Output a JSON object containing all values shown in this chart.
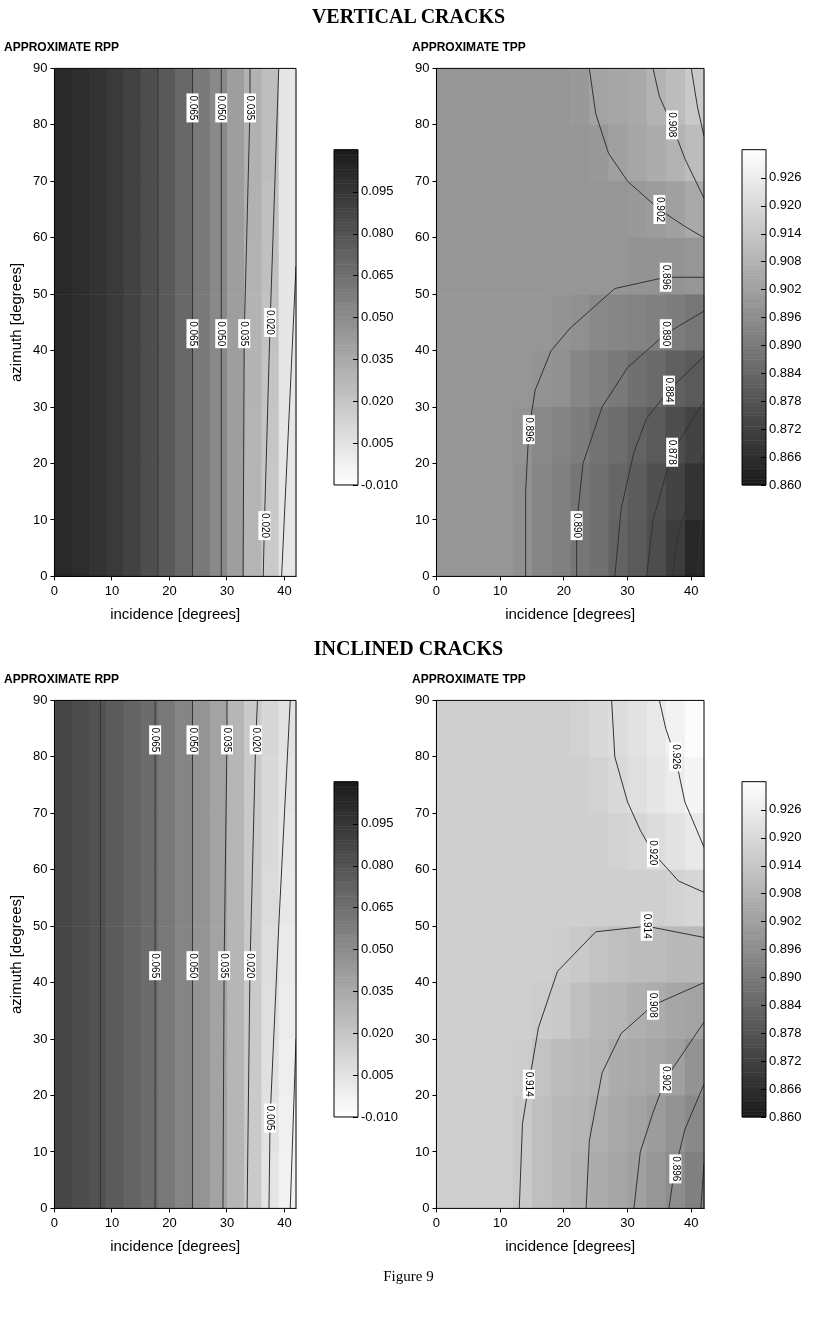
{
  "chart_data": [
    {
      "type": "heatmap",
      "title": "APPROXIMATE RPP",
      "xlabel": "incidence [degrees]",
      "ylabel": "azimuth [degrees]",
      "xlim": [
        0,
        42
      ],
      "ylim": [
        0,
        90
      ],
      "xticks": [
        0,
        10,
        20,
        30,
        40
      ],
      "yticks": [
        0,
        10,
        20,
        30,
        40,
        50,
        60,
        70,
        80,
        90
      ],
      "grid": false,
      "clim": [
        -0.01,
        0.11
      ],
      "colors": [
        "#ffffff",
        "#1a1a1a"
      ],
      "cticks": [
        {
          "value": -0.01,
          "label": "-0.010"
        },
        {
          "value": 0.005,
          "label": "0.005"
        },
        {
          "value": 0.02,
          "label": "0.020"
        },
        {
          "value": 0.035,
          "label": "0.035"
        },
        {
          "value": 0.05,
          "label": "0.050"
        },
        {
          "value": 0.065,
          "label": "0.065"
        },
        {
          "value": 0.08,
          "label": "0.080"
        },
        {
          "value": 0.095,
          "label": "0.095"
        }
      ],
      "cells": [
        [
          0.102,
          0.1,
          0.097,
          0.093,
          0.089,
          0.083,
          0.077,
          0.069,
          0.06,
          0.052,
          0.041,
          0.031,
          0.024,
          0.003
        ],
        [
          0.102,
          0.1,
          0.097,
          0.093,
          0.089,
          0.083,
          0.077,
          0.069,
          0.06,
          0.052,
          0.041,
          0.031,
          0.024,
          0.003
        ],
        [
          0.102,
          0.1,
          0.097,
          0.093,
          0.089,
          0.083,
          0.077,
          0.069,
          0.06,
          0.052,
          0.041,
          0.031,
          0.023,
          0.003
        ],
        [
          0.102,
          0.1,
          0.097,
          0.093,
          0.089,
          0.083,
          0.077,
          0.069,
          0.06,
          0.052,
          0.041,
          0.03,
          0.023,
          0.003
        ],
        [
          0.102,
          0.1,
          0.097,
          0.093,
          0.089,
          0.083,
          0.077,
          0.069,
          0.06,
          0.052,
          0.041,
          0.03,
          0.022,
          0.003
        ],
        [
          0.102,
          0.1,
          0.097,
          0.093,
          0.089,
          0.083,
          0.077,
          0.069,
          0.06,
          0.052,
          0.041,
          0.03,
          0.021,
          0.003
        ],
        [
          0.102,
          0.1,
          0.097,
          0.093,
          0.089,
          0.083,
          0.077,
          0.069,
          0.06,
          0.052,
          0.041,
          0.029,
          0.02,
          0.003
        ],
        [
          0.102,
          0.1,
          0.097,
          0.093,
          0.089,
          0.083,
          0.077,
          0.069,
          0.06,
          0.052,
          0.041,
          0.029,
          0.019,
          0.003
        ],
        [
          0.102,
          0.1,
          0.097,
          0.093,
          0.089,
          0.083,
          0.077,
          0.069,
          0.06,
          0.052,
          0.041,
          0.029,
          0.018,
          0.003
        ]
      ],
      "series": [
        {
          "type": "line",
          "color": "#333333",
          "x": [
            9,
            9
          ],
          "values": [
            0,
            90
          ]
        },
        {
          "type": "line",
          "color": "#333333",
          "x": [
            18,
            18
          ],
          "values": [
            0,
            90
          ]
        },
        {
          "type": "line",
          "color": "#333333",
          "x": [
            24,
            24
          ],
          "values": [
            0,
            90
          ]
        },
        {
          "type": "line",
          "color": "#333333",
          "x": [
            29,
            29
          ],
          "values": [
            0,
            90
          ]
        },
        {
          "type": "line",
          "color": "#333333",
          "x": [
            32.8,
            33,
            34,
            34
          ],
          "values": [
            0,
            43,
            83,
            90
          ]
        },
        {
          "type": "line",
          "color": "#333333",
          "x": [
            36.3,
            36.5,
            37.5,
            39
          ],
          "values": [
            0,
            9,
            45,
            90
          ]
        },
        {
          "type": "line",
          "color": "#333333",
          "x": [
            39.5,
            42
          ],
          "values": [
            0,
            55
          ]
        }
      ],
      "annotations": [
        "VERTICAL CRACKS",
        {
          "text": "0.065",
          "x": 24,
          "y": 83
        },
        {
          "text": "0.050",
          "x": 29,
          "y": 83
        },
        {
          "text": "0.035",
          "x": 34,
          "y": 83
        },
        {
          "text": "0.065",
          "x": 24,
          "y": 43
        },
        {
          "text": "0.050",
          "x": 29,
          "y": 43
        },
        {
          "text": "0.035",
          "x": 33,
          "y": 43
        },
        {
          "text": "0.020",
          "x": 37.5,
          "y": 45
        },
        {
          "text": "0.020",
          "x": 36.5,
          "y": 9
        }
      ]
    },
    {
      "type": "heatmap",
      "title": "APPROXIMATE TPP",
      "xlabel": "incidence [degrees]",
      "xlim": [
        0,
        42
      ],
      "ylim": [
        0,
        90
      ],
      "xticks": [
        0,
        10,
        20,
        30,
        40
      ],
      "yticks": [
        0,
        10,
        20,
        30,
        40,
        50,
        60,
        70,
        80,
        90
      ],
      "grid": false,
      "clim": [
        0.86,
        0.932
      ],
      "colors": [
        "#1a1a1a",
        "#ffffff"
      ],
      "cticks": [
        {
          "value": 0.86,
          "label": "0.860"
        },
        {
          "value": 0.866,
          "label": "0.866"
        },
        {
          "value": 0.872,
          "label": "0.872"
        },
        {
          "value": 0.878,
          "label": "0.878"
        },
        {
          "value": 0.884,
          "label": "0.884"
        },
        {
          "value": 0.89,
          "label": "0.890"
        },
        {
          "value": 0.896,
          "label": "0.896"
        },
        {
          "value": 0.902,
          "label": "0.902"
        },
        {
          "value": 0.908,
          "label": "0.908"
        },
        {
          "value": 0.914,
          "label": "0.914"
        },
        {
          "value": 0.92,
          "label": "0.920"
        },
        {
          "value": 0.926,
          "label": "0.926"
        }
      ],
      "cells": [
        [
          0.899,
          0.899,
          0.899,
          0.899,
          0.899,
          0.899,
          0.899,
          0.9,
          0.903,
          0.904,
          0.905,
          0.908,
          0.911,
          0.915
        ],
        [
          0.899,
          0.899,
          0.899,
          0.899,
          0.899,
          0.899,
          0.899,
          0.899,
          0.9,
          0.902,
          0.904,
          0.906,
          0.908,
          0.911
        ],
        [
          0.899,
          0.899,
          0.899,
          0.899,
          0.899,
          0.899,
          0.899,
          0.899,
          0.899,
          0.899,
          0.9,
          0.901,
          0.902,
          0.905
        ],
        [
          0.899,
          0.899,
          0.899,
          0.899,
          0.899,
          0.899,
          0.899,
          0.899,
          0.899,
          0.899,
          0.898,
          0.898,
          0.898,
          0.899
        ],
        [
          0.899,
          0.899,
          0.899,
          0.899,
          0.899,
          0.899,
          0.898,
          0.897,
          0.895,
          0.894,
          0.893,
          0.892,
          0.891,
          0.889
        ],
        [
          0.899,
          0.899,
          0.899,
          0.899,
          0.899,
          0.898,
          0.897,
          0.894,
          0.892,
          0.89,
          0.887,
          0.885,
          0.882,
          0.88
        ],
        [
          0.899,
          0.899,
          0.899,
          0.899,
          0.898,
          0.895,
          0.893,
          0.891,
          0.888,
          0.886,
          0.883,
          0.88,
          0.876,
          0.873
        ],
        [
          0.899,
          0.899,
          0.899,
          0.899,
          0.897,
          0.894,
          0.892,
          0.889,
          0.887,
          0.884,
          0.881,
          0.877,
          0.873,
          0.868
        ],
        [
          0.899,
          0.899,
          0.899,
          0.899,
          0.897,
          0.894,
          0.892,
          0.889,
          0.887,
          0.883,
          0.88,
          0.876,
          0.871,
          0.864
        ]
      ],
      "series": [
        {
          "type": "line",
          "color": "#333333",
          "x": [
            14,
            14,
            14.5,
            15.5,
            18,
            21,
            28,
            36,
            42
          ],
          "values": [
            0,
            15,
            26,
            33,
            40,
            44,
            51,
            53,
            53
          ]
        },
        {
          "type": "line",
          "color": "#333333",
          "x": [
            22,
            22,
            23,
            26,
            30,
            36,
            42
          ],
          "values": [
            0,
            9,
            20,
            30,
            37,
            43,
            47
          ]
        },
        {
          "type": "line",
          "color": "#333333",
          "x": [
            28,
            29,
            31,
            33,
            36.5,
            42
          ],
          "values": [
            0,
            12,
            22,
            28,
            33,
            39
          ]
        },
        {
          "type": "line",
          "color": "#333333",
          "x": [
            33,
            34,
            36,
            37,
            42
          ],
          "values": [
            0,
            10,
            18,
            22,
            31
          ]
        },
        {
          "type": "line",
          "color": "#333333",
          "x": [
            37,
            38,
            40,
            42
          ],
          "values": [
            0,
            8,
            15,
            22
          ]
        },
        {
          "type": "line",
          "color": "#333333",
          "x": [
            41,
            42
          ],
          "values": [
            0,
            18
          ]
        },
        {
          "type": "line",
          "color": "#333333",
          "x": [
            24,
            25,
            27,
            30,
            35,
            39,
            42
          ],
          "values": [
            90,
            82,
            75,
            70,
            65,
            62,
            60
          ]
        },
        {
          "type": "line",
          "color": "#333333",
          "x": [
            34,
            35,
            37,
            39,
            42
          ],
          "values": [
            90,
            85,
            80,
            74,
            67
          ]
        },
        {
          "type": "line",
          "color": "#333333",
          "x": [
            40,
            41,
            42
          ],
          "values": [
            90,
            83,
            78
          ]
        }
      ],
      "annotations": [
        {
          "text": "0.908",
          "x": 37,
          "y": 80
        },
        {
          "text": "0.902",
          "x": 35,
          "y": 65
        },
        {
          "text": "0.896",
          "x": 36,
          "y": 53
        },
        {
          "text": "0.890",
          "x": 36,
          "y": 43
        },
        {
          "text": "0.884",
          "x": 36.5,
          "y": 33
        },
        {
          "text": "0.878",
          "x": 37,
          "y": 22
        },
        {
          "text": "0.896",
          "x": 14.5,
          "y": 26
        },
        {
          "text": "0.890",
          "x": 22,
          "y": 9
        }
      ]
    },
    {
      "type": "heatmap",
      "title": "APPROXIMATE RPP",
      "xlabel": "incidence [degrees]",
      "ylabel": "azimuth [degrees]",
      "xlim": [
        0,
        42
      ],
      "ylim": [
        0,
        90
      ],
      "xticks": [
        0,
        10,
        20,
        30,
        40
      ],
      "yticks": [
        0,
        10,
        20,
        30,
        40,
        50,
        60,
        70,
        80,
        90
      ],
      "grid": false,
      "clim": [
        -0.01,
        0.11
      ],
      "colors": [
        "#ffffff",
        "#1a1a1a"
      ],
      "cticks": [
        {
          "value": -0.01,
          "label": "-0.010"
        },
        {
          "value": 0.005,
          "label": "0.005"
        },
        {
          "value": 0.02,
          "label": "0.020"
        },
        {
          "value": 0.035,
          "label": "0.035"
        },
        {
          "value": 0.05,
          "label": "0.050"
        },
        {
          "value": 0.065,
          "label": "0.065"
        },
        {
          "value": 0.08,
          "label": "0.080"
        },
        {
          "value": 0.095,
          "label": "0.095"
        }
      ],
      "cells": [
        [
          0.087,
          0.084,
          0.081,
          0.076,
          0.071,
          0.067,
          0.061,
          0.054,
          0.046,
          0.038,
          0.028,
          0.018,
          0.011,
          0.005
        ],
        [
          0.087,
          0.084,
          0.081,
          0.076,
          0.071,
          0.067,
          0.061,
          0.054,
          0.046,
          0.038,
          0.028,
          0.018,
          0.01,
          0.004
        ],
        [
          0.087,
          0.084,
          0.081,
          0.076,
          0.071,
          0.067,
          0.061,
          0.054,
          0.046,
          0.038,
          0.028,
          0.018,
          0.01,
          0.003
        ],
        [
          0.087,
          0.084,
          0.081,
          0.076,
          0.071,
          0.067,
          0.061,
          0.054,
          0.046,
          0.038,
          0.028,
          0.018,
          0.009,
          0.002
        ],
        [
          0.087,
          0.084,
          0.081,
          0.076,
          0.071,
          0.067,
          0.061,
          0.054,
          0.046,
          0.038,
          0.028,
          0.018,
          0.008,
          0.001
        ],
        [
          0.087,
          0.084,
          0.081,
          0.076,
          0.071,
          0.067,
          0.061,
          0.054,
          0.046,
          0.038,
          0.028,
          0.018,
          0.007,
          0.0
        ],
        [
          0.087,
          0.084,
          0.081,
          0.076,
          0.071,
          0.067,
          0.061,
          0.054,
          0.046,
          0.038,
          0.028,
          0.018,
          0.006,
          -0.001
        ],
        [
          0.087,
          0.084,
          0.081,
          0.076,
          0.071,
          0.067,
          0.061,
          0.054,
          0.046,
          0.038,
          0.028,
          0.018,
          0.005,
          -0.002
        ],
        [
          0.087,
          0.084,
          0.081,
          0.076,
          0.071,
          0.067,
          0.061,
          0.054,
          0.046,
          0.038,
          0.028,
          0.018,
          0.004,
          -0.003
        ]
      ],
      "series": [
        {
          "type": "line",
          "color": "#333333",
          "x": [
            8,
            8
          ],
          "values": [
            0,
            90
          ]
        },
        {
          "type": "line",
          "color": "#333333",
          "x": [
            17.5,
            17.5
          ],
          "values": [
            0,
            90
          ]
        },
        {
          "type": "line",
          "color": "#333333",
          "x": [
            24,
            24
          ],
          "values": [
            0,
            90
          ]
        },
        {
          "type": "line",
          "color": "#333333",
          "x": [
            29.3,
            29.5,
            30,
            30
          ],
          "values": [
            0,
            43,
            83,
            90
          ]
        },
        {
          "type": "line",
          "color": "#333333",
          "x": [
            33.5,
            34,
            35,
            35.3
          ],
          "values": [
            0,
            43,
            83,
            90
          ]
        },
        {
          "type": "line",
          "color": "#333333",
          "x": [
            37.3,
            37.5,
            39,
            41
          ],
          "values": [
            0,
            16,
            50,
            90
          ]
        },
        {
          "type": "line",
          "color": "#333333",
          "x": [
            41,
            42
          ],
          "values": [
            0,
            30
          ]
        }
      ],
      "annotations": [
        "INCLINED CRACKS",
        {
          "text": "0.065",
          "x": 17.5,
          "y": 83
        },
        {
          "text": "0.050",
          "x": 24,
          "y": 83
        },
        {
          "text": "0.035",
          "x": 30,
          "y": 83
        },
        {
          "text": "0.020",
          "x": 35,
          "y": 83
        },
        {
          "text": "0.065",
          "x": 17.5,
          "y": 43
        },
        {
          "text": "0.050",
          "x": 24,
          "y": 43
        },
        {
          "text": "0.035",
          "x": 29.5,
          "y": 43
        },
        {
          "text": "0.020",
          "x": 34,
          "y": 43
        },
        {
          "text": "0.005",
          "x": 37.5,
          "y": 16
        }
      ]
    },
    {
      "type": "heatmap",
      "title": "APPROXIMATE TPP",
      "xlabel": "incidence [degrees]",
      "xlim": [
        0,
        42
      ],
      "ylim": [
        0,
        90
      ],
      "xticks": [
        0,
        10,
        20,
        30,
        40
      ],
      "yticks": [
        0,
        10,
        20,
        30,
        40,
        50,
        60,
        70,
        80,
        90
      ],
      "grid": false,
      "clim": [
        0.86,
        0.932
      ],
      "colors": [
        "#1a1a1a",
        "#ffffff"
      ],
      "cticks": [
        {
          "value": 0.86,
          "label": "0.860"
        },
        {
          "value": 0.866,
          "label": "0.866"
        },
        {
          "value": 0.872,
          "label": "0.872"
        },
        {
          "value": 0.878,
          "label": "0.878"
        },
        {
          "value": 0.884,
          "label": "0.884"
        },
        {
          "value": 0.89,
          "label": "0.890"
        },
        {
          "value": 0.896,
          "label": "0.896"
        },
        {
          "value": 0.902,
          "label": "0.902"
        },
        {
          "value": 0.908,
          "label": "0.908"
        },
        {
          "value": 0.914,
          "label": "0.914"
        },
        {
          "value": 0.92,
          "label": "0.920"
        },
        {
          "value": 0.926,
          "label": "0.926"
        }
      ],
      "cells": [
        [
          0.917,
          0.917,
          0.917,
          0.917,
          0.917,
          0.917,
          0.917,
          0.918,
          0.92,
          0.921,
          0.923,
          0.925,
          0.928,
          0.931
        ],
        [
          0.917,
          0.917,
          0.917,
          0.917,
          0.917,
          0.917,
          0.917,
          0.917,
          0.918,
          0.92,
          0.922,
          0.924,
          0.926,
          0.929
        ],
        [
          0.917,
          0.917,
          0.917,
          0.917,
          0.917,
          0.917,
          0.917,
          0.917,
          0.917,
          0.918,
          0.919,
          0.921,
          0.923,
          0.925
        ],
        [
          0.917,
          0.917,
          0.917,
          0.917,
          0.917,
          0.917,
          0.917,
          0.917,
          0.917,
          0.917,
          0.917,
          0.917,
          0.918,
          0.919
        ],
        [
          0.917,
          0.917,
          0.917,
          0.917,
          0.917,
          0.917,
          0.916,
          0.915,
          0.913,
          0.912,
          0.911,
          0.911,
          0.91,
          0.91
        ],
        [
          0.917,
          0.917,
          0.917,
          0.917,
          0.917,
          0.916,
          0.915,
          0.912,
          0.91,
          0.909,
          0.907,
          0.906,
          0.904,
          0.903
        ],
        [
          0.917,
          0.917,
          0.917,
          0.917,
          0.916,
          0.913,
          0.911,
          0.91,
          0.909,
          0.906,
          0.905,
          0.904,
          0.902,
          0.898
        ],
        [
          0.917,
          0.917,
          0.917,
          0.917,
          0.915,
          0.912,
          0.91,
          0.909,
          0.907,
          0.905,
          0.903,
          0.901,
          0.898,
          0.895
        ],
        [
          0.917,
          0.917,
          0.917,
          0.917,
          0.915,
          0.912,
          0.91,
          0.908,
          0.906,
          0.904,
          0.902,
          0.899,
          0.896,
          0.892
        ]
      ],
      "series": [
        {
          "type": "line",
          "color": "#333333",
          "x": [
            13,
            13.5,
            14.5,
            16,
            19,
            25,
            33,
            42
          ],
          "values": [
            0,
            15,
            22,
            32,
            42,
            49,
            50,
            48
          ]
        },
        {
          "type": "line",
          "color": "#333333",
          "x": [
            23.5,
            24,
            26,
            29,
            34,
            42
          ],
          "values": [
            0,
            12,
            24,
            31,
            36,
            40
          ]
        },
        {
          "type": "line",
          "color": "#333333",
          "x": [
            31,
            32,
            34,
            36,
            39,
            42
          ],
          "values": [
            0,
            10,
            17,
            23,
            28,
            33
          ]
        },
        {
          "type": "line",
          "color": "#333333",
          "x": [
            36.5,
            37,
            37.5,
            39,
            42
          ],
          "values": [
            0,
            4,
            7,
            14,
            22
          ]
        },
        {
          "type": "line",
          "color": "#333333",
          "x": [
            41.5,
            42
          ],
          "values": [
            0,
            8
          ]
        },
        {
          "type": "line",
          "color": "#333333",
          "x": [
            27.5,
            28,
            30,
            32,
            34,
            38,
            42
          ],
          "values": [
            90,
            80,
            72,
            67,
            63,
            58,
            56
          ]
        },
        {
          "type": "line",
          "color": "#333333",
          "x": [
            35,
            36,
            37.5,
            39,
            42
          ],
          "values": [
            90,
            85,
            80,
            72,
            64
          ]
        }
      ],
      "annotations": [
        "Figure 9",
        {
          "text": "0.926",
          "x": 37.5,
          "y": 80
        },
        {
          "text": "0.920",
          "x": 34,
          "y": 63
        },
        {
          "text": "0.914",
          "x": 33,
          "y": 50
        },
        {
          "text": "0.908",
          "x": 34,
          "y": 36
        },
        {
          "text": "0.902",
          "x": 36,
          "y": 23
        },
        {
          "text": "0.896",
          "x": 37.5,
          "y": 7
        },
        {
          "text": "0.914",
          "x": 14.5,
          "y": 22
        }
      ]
    }
  ]
}
